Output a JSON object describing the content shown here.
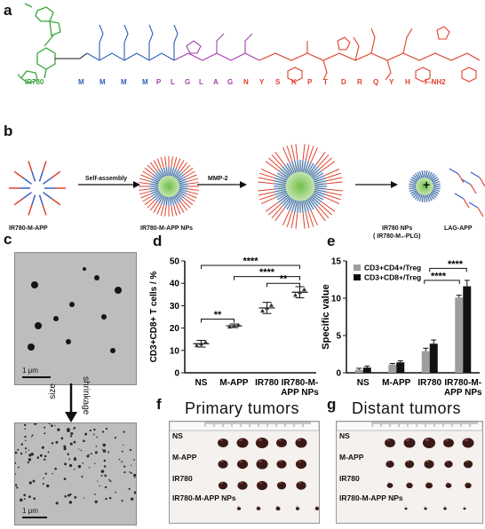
{
  "panels": {
    "a": {
      "letter": "a",
      "compound": "IR780",
      "sequence": [
        "M",
        "M",
        "M",
        "M",
        "P",
        "L",
        "G",
        "L",
        "A",
        "G",
        "N",
        "Y",
        "S",
        "K",
        "P",
        "T",
        "D",
        "R",
        "Q",
        "Y",
        "H",
        "F-NH2"
      ]
    },
    "b": {
      "letter": "b",
      "labels": {
        "start": "IR780-M-APP",
        "arrow1": "Self-assembly",
        "mid": "IR780-M-APP NPs",
        "arrow2": "MMP-2",
        "np": "IR780 NPs",
        "np_sub": "( IR780-M₄-PLG)",
        "plus": "+",
        "frag": "LAG-APP"
      }
    },
    "c": {
      "letter": "c",
      "scale1": "1 μm",
      "scale2": "1 μm",
      "size": "size",
      "shrinkage": "shrinkage"
    },
    "d": {
      "letter": "d",
      "ylabel": "CD3+CD8+ T cells / %",
      "sig": [
        "****",
        "****",
        "**",
        "**"
      ]
    },
    "e": {
      "letter": "e",
      "ylabel": "Specific value",
      "sig": [
        "****",
        "****"
      ]
    },
    "f": {
      "letter": "f",
      "title": "Primary tumors",
      "rows": [
        "NS",
        "M-APP",
        "IR780",
        "IR780-M-APP NPs"
      ]
    },
    "g": {
      "letter": "g",
      "title": "Distant tumors",
      "rows": [
        "NS",
        "M-APP",
        "IR780",
        "IR780-M-APP NPs"
      ]
    }
  },
  "colors": {
    "green": "#3aa53a",
    "blue": "#2d5fb8",
    "purple": "#a43fb0",
    "red": "#e0402a",
    "gray": "#9e9e9e",
    "black": "#111111"
  },
  "chart_data": [
    {
      "type": "scatter",
      "panel": "d",
      "categories": [
        "NS",
        "M-APP",
        "IR780",
        "IR780-M-APP NPs"
      ],
      "category_labels": [
        [
          "NS"
        ],
        [
          "M-APP"
        ],
        [
          "IR780"
        ],
        [
          "IR780-M-",
          "APP NPs"
        ]
      ],
      "values": [
        13,
        21,
        29,
        36
      ],
      "spread": [
        1.5,
        0.8,
        2.5,
        2.5
      ],
      "ylabel": "CD3+CD8+ T cells / %",
      "ylim": [
        0,
        50
      ],
      "yticks": [
        0,
        10,
        20,
        30,
        40,
        50
      ]
    },
    {
      "type": "bar",
      "panel": "e",
      "categories": [
        "NS",
        "M-APP",
        "IR780",
        "IR780-M-APP NPs"
      ],
      "category_labels": [
        [
          "NS"
        ],
        [
          "M-APP"
        ],
        [
          "IR780"
        ],
        [
          "IR780-M-",
          "APP NPs"
        ]
      ],
      "series": [
        {
          "name": "CD3+CD4+/Treg",
          "values": [
            0.4,
            1.1,
            2.9,
            10.1
          ],
          "err": [
            0.2,
            0.15,
            0.4,
            0.3
          ]
        },
        {
          "name": "CD3+CD8+/Treg",
          "values": [
            0.7,
            1.4,
            3.9,
            11.6
          ],
          "err": [
            0.2,
            0.2,
            0.5,
            0.8
          ]
        }
      ],
      "ylabel": "Specific value",
      "ylim": [
        0,
        15
      ],
      "yticks": [
        0,
        5,
        10,
        15
      ],
      "legend": "top-left"
    }
  ]
}
